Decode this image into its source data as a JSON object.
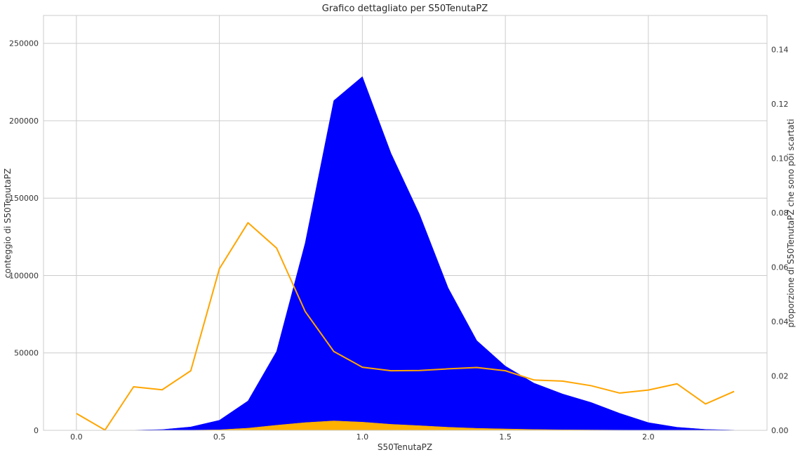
{
  "chart_data": {
    "type": "area",
    "title": "Grafico dettagliato per S50TenutaPZ",
    "xlabel": "S50TenutaPZ",
    "ylabel_left": "conteggio di S50TenutaPZ",
    "ylabel_right": "proporzione di S50TenutaPZ che sono poi scartati",
    "xlim": [
      -0.115,
      2.415
    ],
    "ylim_left": [
      0,
      268000
    ],
    "ylim_right": [
      0,
      0.1525
    ],
    "grid": true,
    "x_ticks": [
      "0.0",
      "0.5",
      "1.0",
      "1.5",
      "2.0"
    ],
    "x_tick_values": [
      0.0,
      0.5,
      1.0,
      1.5,
      2.0
    ],
    "y_left_ticks": [
      "0",
      "50000",
      "100000",
      "150000",
      "200000",
      "250000"
    ],
    "y_left_tick_values": [
      0,
      50000,
      100000,
      150000,
      200000,
      250000
    ],
    "y_right_ticks": [
      "0.00",
      "0.02",
      "0.04",
      "0.06",
      "0.08",
      "0.10",
      "0.12",
      "0.14"
    ],
    "y_right_tick_values": [
      0.0,
      0.02,
      0.04,
      0.06,
      0.08,
      0.1,
      0.12,
      0.14
    ],
    "x": [
      0.0,
      0.1,
      0.2,
      0.3,
      0.4,
      0.5,
      0.6,
      0.7,
      0.8,
      0.9,
      1.0,
      1.1,
      1.2,
      1.3,
      1.4,
      1.5,
      1.6,
      1.7,
      1.8,
      1.9,
      2.0,
      2.1,
      2.2,
      2.3
    ],
    "series": [
      {
        "axis": "left",
        "render": "area",
        "color": "#0000ff",
        "values": [
          0,
          0,
          100,
          500,
          2200,
          6500,
          19000,
          51000,
          121000,
          213000,
          228500,
          179000,
          139500,
          92000,
          58000,
          41500,
          30500,
          23500,
          18000,
          11000,
          5000,
          2000,
          600,
          150
        ]
      },
      {
        "axis": "left",
        "render": "area",
        "color": "#ffb000",
        "values": [
          0,
          0,
          0,
          20,
          100,
          350,
          1400,
          3300,
          5000,
          6100,
          5300,
          3900,
          3000,
          2000,
          1300,
          900,
          550,
          350,
          250,
          130,
          60,
          30,
          5,
          1
        ]
      },
      {
        "axis": "right",
        "render": "line",
        "color": "#ffa500",
        "values": [
          0.0062,
          0.0001,
          0.016,
          0.0149,
          0.0219,
          0.0594,
          0.0763,
          0.067,
          0.0437,
          0.029,
          0.0232,
          0.0219,
          0.022,
          0.0226,
          0.0231,
          0.0219,
          0.0185,
          0.0181,
          0.0164,
          0.0137,
          0.0148,
          0.0171,
          0.0097,
          0.0143
        ]
      }
    ]
  }
}
